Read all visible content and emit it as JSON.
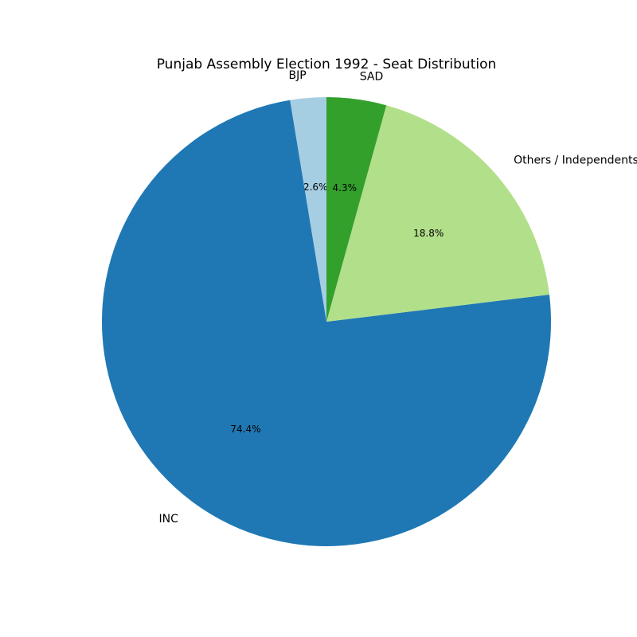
{
  "chart_data": {
    "type": "pie",
    "title": "Punjab Assembly Election 1992 - Seat Distribution",
    "categories": [
      "BJP",
      "INC",
      "Others / Independents",
      "SAD"
    ],
    "values": [
      2.6,
      74.4,
      18.8,
      4.3
    ],
    "value_labels": [
      "2.6%",
      "74.4%",
      "18.8%",
      "4.3%"
    ],
    "colors": [
      "#a6cee3",
      "#1f78b4",
      "#b2df8a",
      "#33a02c"
    ],
    "start_angle": 90,
    "direction": "counterclockwise"
  }
}
